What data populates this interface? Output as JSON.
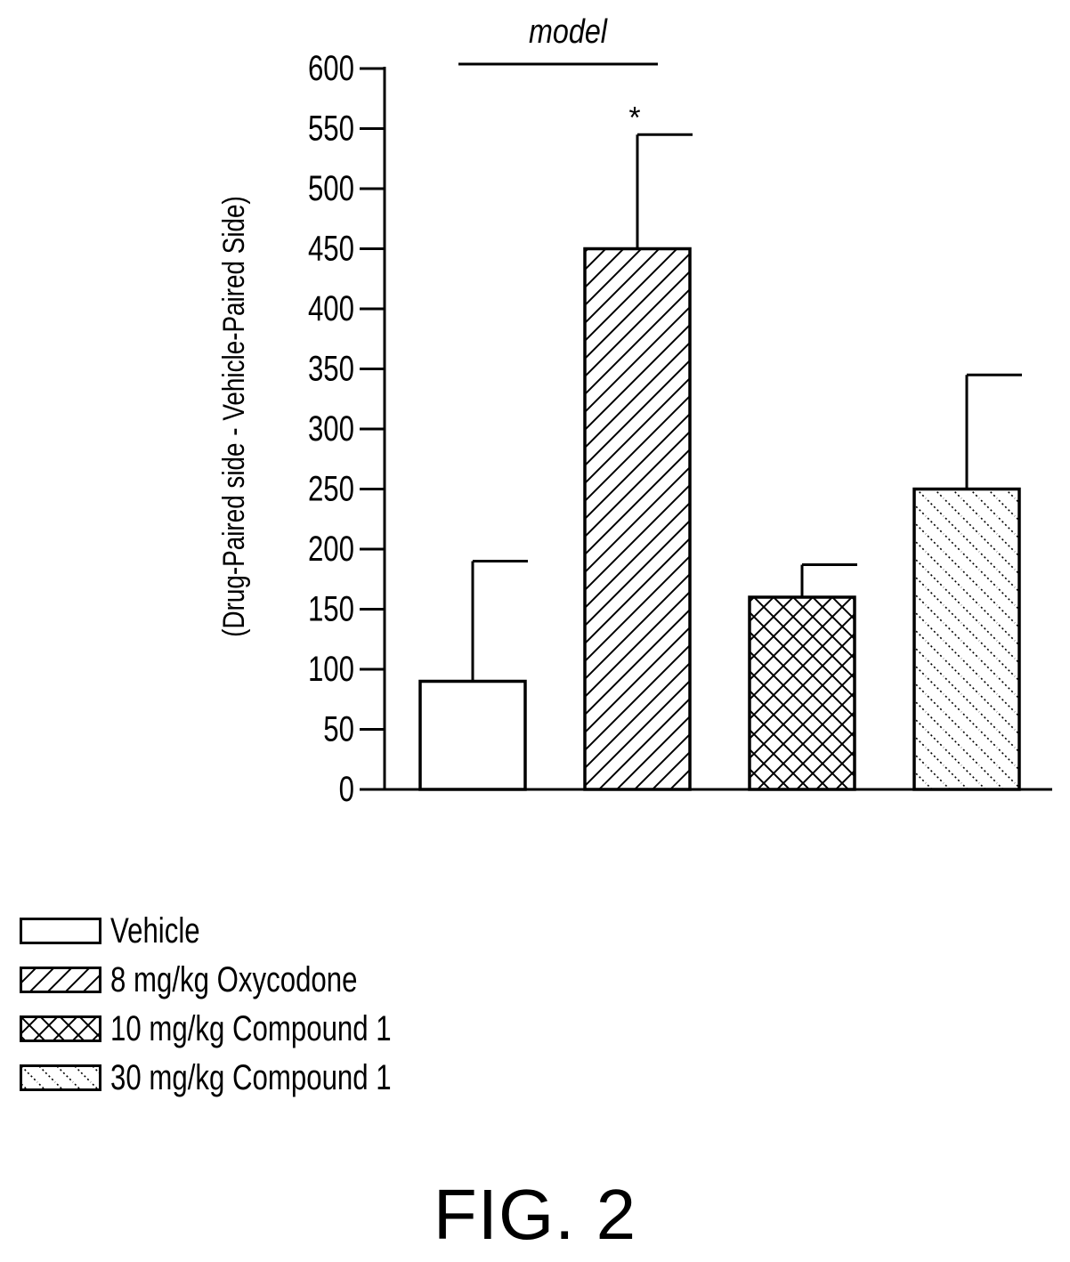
{
  "chart_data": {
    "type": "bar",
    "title": "",
    "ylabel": "(Drug-Paired side - Vehicle-Paired Side)",
    "xlabel": "",
    "ylim": [
      0,
      600
    ],
    "yticks": [
      0,
      50,
      100,
      150,
      200,
      250,
      300,
      350,
      400,
      450,
      500,
      550,
      600
    ],
    "grid": false,
    "legend_position": "bottom-left",
    "categories": [
      "Vehicle",
      "8 mg/kg Oxycodone",
      "10 mg/kg Compound 1",
      "30 mg/kg Compound 1"
    ],
    "values": [
      90,
      450,
      160,
      250
    ],
    "errors": [
      100,
      95,
      27,
      95
    ],
    "patterns": [
      "none",
      "diagonal-hatch",
      "cross-hatch",
      "dotted-diagonal"
    ],
    "annotations": {
      "significance": "*",
      "significance_category": "8 mg/kg Oxycodone",
      "bracket_label": "model"
    }
  },
  "figure_label": "FIG. 2"
}
